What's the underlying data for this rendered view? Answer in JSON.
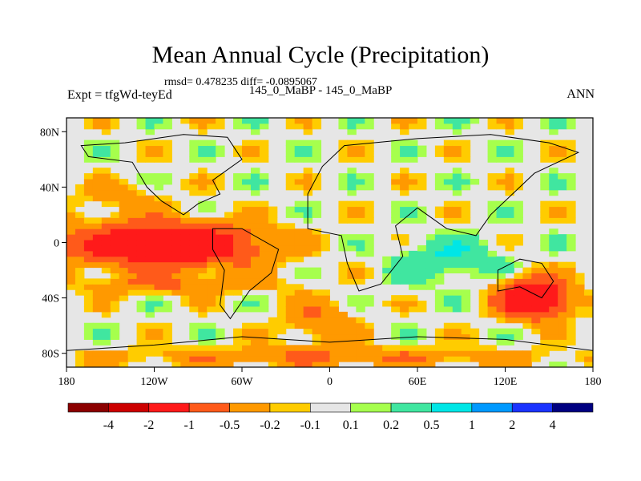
{
  "header": {
    "title": "Mean Annual Cycle (Precipitation)",
    "stats": "rmsd= 0.478235 diff= -0.0895067",
    "experiment": "Expt = tfgWd-teyEd",
    "comparison": "145_0_MaBP - 145_0_MaBP",
    "season": "ANN"
  },
  "chart_data": {
    "type": "heatmap",
    "title": "Mean Annual Cycle (Precipitation)",
    "subtitle": "rmsd= 0.478235 diff= -0.0895067",
    "xlabel": "",
    "ylabel": "",
    "xlim": [
      -180,
      180
    ],
    "ylim": [
      -90,
      90
    ],
    "x_ticks": [
      {
        "value": -180,
        "label": "180"
      },
      {
        "value": -120,
        "label": "120W"
      },
      {
        "value": -60,
        "label": "60W"
      },
      {
        "value": 0,
        "label": "0"
      },
      {
        "value": 60,
        "label": "60E"
      },
      {
        "value": 120,
        "label": "120E"
      },
      {
        "value": 180,
        "label": "180"
      }
    ],
    "y_ticks": [
      {
        "value": 80,
        "label": "80N"
      },
      {
        "value": 40,
        "label": "40N"
      },
      {
        "value": 0,
        "label": "0"
      },
      {
        "value": -40,
        "label": "40S"
      },
      {
        "value": -80,
        "label": "80S"
      }
    ],
    "colorbar": {
      "levels": [
        "-4",
        "-2",
        "-1",
        "-0.5",
        "-0.2",
        "-0.1",
        "0.1",
        "0.2",
        "0.5",
        "1",
        "2",
        "4"
      ],
      "colors": [
        "#8b0000",
        "#cc0000",
        "#ff1a1a",
        "#ff5a1a",
        "#ff9900",
        "#ffcc00",
        "#e6e6e6",
        "#a6ff4d",
        "#40e6a0",
        "#00e6e6",
        "#0099ff",
        "#1a33ff",
        "#000080"
      ]
    },
    "features": [
      {
        "name": "equatorial-pacific-negative",
        "lon": [
          -180,
          -45
        ],
        "lat": [
          -18,
          15
        ],
        "value": -2
      },
      {
        "name": "southern-pacific-negative-band",
        "lon": [
          -180,
          -30
        ],
        "lat": [
          -38,
          -22
        ],
        "value": -0.5
      },
      {
        "name": "north-pacific-negative",
        "lon": [
          -180,
          -110
        ],
        "lat": [
          20,
          45
        ],
        "value": -0.3
      },
      {
        "name": "indian-ocean-positive",
        "lon": [
          40,
          120
        ],
        "lat": [
          -30,
          5
        ],
        "value": 0.5
      },
      {
        "name": "australia-east-negative",
        "lon": [
          115,
          165
        ],
        "lat": [
          -55,
          -25
        ],
        "value": -2
      },
      {
        "name": "south-atlantic-negative",
        "lon": [
          -35,
          20
        ],
        "lat": [
          -75,
          -40
        ],
        "value": -0.5
      },
      {
        "name": "southern-ocean-negative",
        "lon": [
          -180,
          180
        ],
        "lat": [
          -90,
          -75
        ],
        "value": -0.5
      }
    ]
  }
}
